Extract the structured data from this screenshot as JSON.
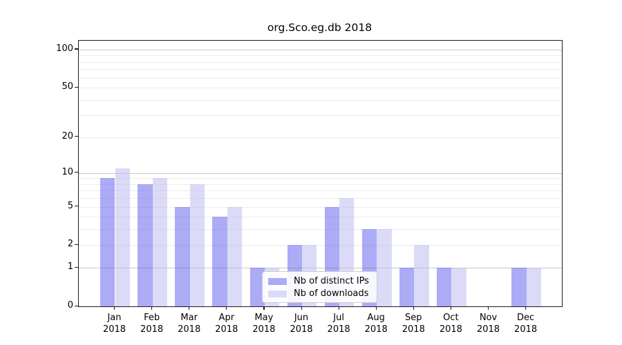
{
  "chart_data": {
    "type": "bar",
    "title": "org.Sco.eg.db 2018",
    "categories": [
      "Jan 2018",
      "Feb 2018",
      "Mar 2018",
      "Apr 2018",
      "May 2018",
      "Jun 2018",
      "Jul 2018",
      "Aug 2018",
      "Sep 2018",
      "Oct 2018",
      "Nov 2018",
      "Dec 2018"
    ],
    "x_ticks": [
      {
        "month": "Jan",
        "year": "2018"
      },
      {
        "month": "Feb",
        "year": "2018"
      },
      {
        "month": "Mar",
        "year": "2018"
      },
      {
        "month": "Apr",
        "year": "2018"
      },
      {
        "month": "May",
        "year": "2018"
      },
      {
        "month": "Jun",
        "year": "2018"
      },
      {
        "month": "Jul",
        "year": "2018"
      },
      {
        "month": "Aug",
        "year": "2018"
      },
      {
        "month": "Sep",
        "year": "2018"
      },
      {
        "month": "Oct",
        "year": "2018"
      },
      {
        "month": "Nov",
        "year": "2018"
      },
      {
        "month": "Dec",
        "year": "2018"
      }
    ],
    "series": [
      {
        "name": "Nb of distinct IPs",
        "color": "rgba(88,88,238,0.5)",
        "color_hex": "#acacf6",
        "values": [
          9,
          8,
          5,
          4,
          1,
          2,
          5,
          3,
          1,
          1,
          0,
          1
        ]
      },
      {
        "name": "Nb of downloads",
        "color": "rgba(184,184,242,0.5)",
        "color_hex": "#dbdbf8",
        "values": [
          11,
          9,
          8,
          5,
          1,
          2,
          6,
          3,
          2,
          1,
          0,
          1
        ]
      }
    ],
    "xlabel": "",
    "ylabel": "",
    "y_scale": "log1p",
    "ylim": [
      0,
      117.6
    ],
    "y_ticks": [
      0,
      1,
      2,
      5,
      10,
      20,
      50,
      100
    ],
    "y_major_gridlines": [
      1,
      10,
      100
    ],
    "y_minor_gridlines": [
      2,
      3,
      4,
      5,
      6,
      7,
      8,
      9,
      20,
      30,
      40,
      50,
      60,
      70,
      80,
      90
    ],
    "grid": "on",
    "legend_position": "lower center (inside plot)"
  },
  "colors": {
    "grid_major": "#c9c9c9",
    "grid_minor": "#ececec",
    "spine": "#1a1a1a",
    "background": "#ffffff",
    "legend_border": "#cccccc"
  }
}
